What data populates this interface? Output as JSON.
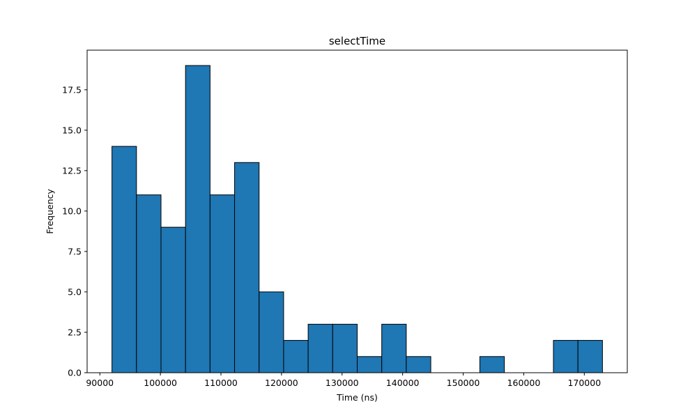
{
  "chart_data": {
    "type": "bar",
    "title": "selectTime",
    "xlabel": "Time (ns)",
    "ylabel": "Frequency",
    "xlim": [
      87900,
      177100
    ],
    "ylim": [
      0,
      19.95
    ],
    "bar_color": "#1f77b4",
    "edge_color": "#000000",
    "grid": false,
    "bins": [
      {
        "start": 92000,
        "end": 96050,
        "count": 14
      },
      {
        "start": 96050,
        "end": 100100,
        "count": 11
      },
      {
        "start": 100100,
        "end": 104150,
        "count": 9
      },
      {
        "start": 104150,
        "end": 108200,
        "count": 19
      },
      {
        "start": 108200,
        "end": 112250,
        "count": 11
      },
      {
        "start": 112250,
        "end": 116300,
        "count": 13
      },
      {
        "start": 116300,
        "end": 120350,
        "count": 5
      },
      {
        "start": 120350,
        "end": 124400,
        "count": 2
      },
      {
        "start": 124400,
        "end": 128450,
        "count": 3
      },
      {
        "start": 128450,
        "end": 132500,
        "count": 3
      },
      {
        "start": 132500,
        "end": 136550,
        "count": 1
      },
      {
        "start": 136550,
        "end": 140600,
        "count": 3
      },
      {
        "start": 140600,
        "end": 144650,
        "count": 1
      },
      {
        "start": 144650,
        "end": 148700,
        "count": 0
      },
      {
        "start": 148700,
        "end": 152750,
        "count": 0
      },
      {
        "start": 152750,
        "end": 156800,
        "count": 1
      },
      {
        "start": 156800,
        "end": 160850,
        "count": 0
      },
      {
        "start": 160850,
        "end": 164900,
        "count": 0
      },
      {
        "start": 164900,
        "end": 168950,
        "count": 2
      },
      {
        "start": 168950,
        "end": 173000,
        "count": 2
      }
    ],
    "x_ticks": [
      {
        "value": 90000,
        "label": "90000"
      },
      {
        "value": 100000,
        "label": "100000"
      },
      {
        "value": 110000,
        "label": "110000"
      },
      {
        "value": 120000,
        "label": "120000"
      },
      {
        "value": 130000,
        "label": "130000"
      },
      {
        "value": 140000,
        "label": "140000"
      },
      {
        "value": 150000,
        "label": "150000"
      },
      {
        "value": 160000,
        "label": "160000"
      },
      {
        "value": 170000,
        "label": "170000"
      }
    ],
    "y_ticks": [
      {
        "value": 0,
        "label": "0.0"
      },
      {
        "value": 2.5,
        "label": "2.5"
      },
      {
        "value": 5,
        "label": "5.0"
      },
      {
        "value": 7.5,
        "label": "7.5"
      },
      {
        "value": 10,
        "label": "10.0"
      },
      {
        "value": 12.5,
        "label": "12.5"
      },
      {
        "value": 15,
        "label": "15.0"
      },
      {
        "value": 17.5,
        "label": "17.5"
      }
    ]
  }
}
